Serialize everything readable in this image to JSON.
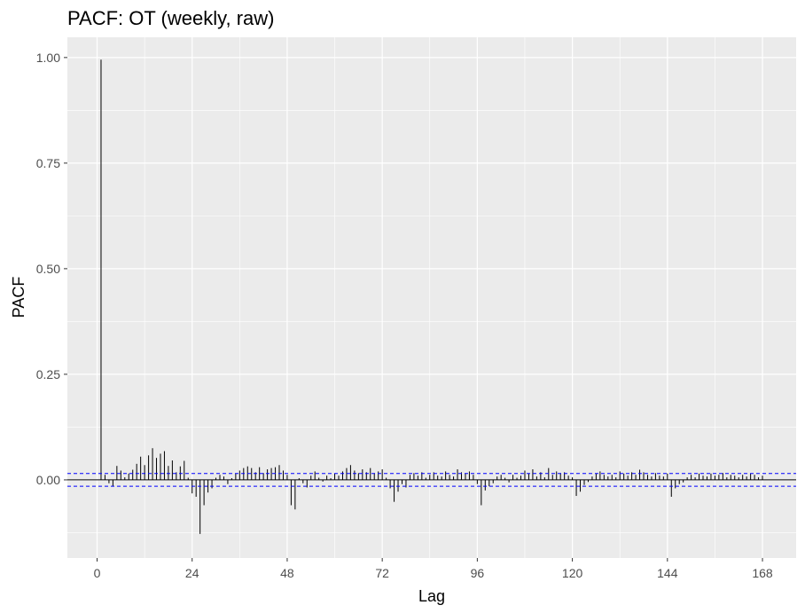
{
  "chart_data": {
    "type": "bar",
    "title": "PACF: OT (weekly, raw)",
    "xlabel": "Lag",
    "ylabel": "PACF",
    "xlim": [
      -7.5,
      176.5
    ],
    "ylim": [
      -0.185,
      1.048
    ],
    "x_ticks": [
      0,
      24,
      48,
      72,
      96,
      120,
      144,
      168
    ],
    "x_tick_labels": [
      "0",
      "24",
      "48",
      "72",
      "96",
      "120",
      "144",
      "168"
    ],
    "y_ticks": [
      0.0,
      0.25,
      0.5,
      0.75,
      1.0
    ],
    "y_tick_labels": [
      "0.00",
      "0.25",
      "0.50",
      "0.75",
      "1.00"
    ],
    "confidence_bounds": [
      0.0151,
      -0.0151
    ],
    "grid": true,
    "lags": [
      1,
      2,
      3,
      4,
      5,
      6,
      7,
      8,
      9,
      10,
      11,
      12,
      13,
      14,
      15,
      16,
      17,
      18,
      19,
      20,
      21,
      22,
      23,
      24,
      25,
      26,
      27,
      28,
      29,
      30,
      31,
      32,
      33,
      34,
      35,
      36,
      37,
      38,
      39,
      40,
      41,
      42,
      43,
      44,
      45,
      46,
      47,
      48,
      49,
      50,
      51,
      52,
      53,
      54,
      55,
      56,
      57,
      58,
      59,
      60,
      61,
      62,
      63,
      64,
      65,
      66,
      67,
      68,
      69,
      70,
      71,
      72,
      73,
      74,
      75,
      76,
      77,
      78,
      79,
      80,
      81,
      82,
      83,
      84,
      85,
      86,
      87,
      88,
      89,
      90,
      91,
      92,
      93,
      94,
      95,
      96,
      97,
      98,
      99,
      100,
      101,
      102,
      103,
      104,
      105,
      106,
      107,
      108,
      109,
      110,
      111,
      112,
      113,
      114,
      115,
      116,
      117,
      118,
      119,
      120,
      121,
      122,
      123,
      124,
      125,
      126,
      127,
      128,
      129,
      130,
      131,
      132,
      133,
      134,
      135,
      136,
      137,
      138,
      139,
      140,
      141,
      142,
      143,
      144,
      145,
      146,
      147,
      148,
      149,
      150,
      151,
      152,
      153,
      154,
      155,
      156,
      157,
      158,
      159,
      160,
      161,
      162,
      163,
      164,
      165,
      166,
      167,
      168
    ],
    "values": [
      0.995,
      0.012,
      -0.008,
      -0.015,
      0.033,
      0.022,
      0.006,
      0.015,
      0.024,
      0.038,
      0.055,
      0.035,
      0.058,
      0.075,
      0.052,
      0.062,
      0.068,
      0.033,
      0.046,
      0.018,
      0.032,
      0.045,
      0.005,
      -0.032,
      -0.04,
      -0.128,
      -0.06,
      -0.03,
      -0.02,
      0.005,
      0.012,
      0.008,
      -0.01,
      0.004,
      0.015,
      0.022,
      0.028,
      0.032,
      0.028,
      0.018,
      0.03,
      0.016,
      0.025,
      0.028,
      0.03,
      0.035,
      0.022,
      0.012,
      -0.06,
      -0.07,
      0.004,
      -0.008,
      -0.018,
      0.01,
      0.02,
      0.005,
      -0.004,
      0.01,
      0.004,
      0.015,
      0.01,
      0.02,
      0.028,
      0.035,
      0.022,
      0.016,
      0.025,
      0.018,
      0.028,
      0.016,
      0.02,
      0.025,
      0.005,
      -0.02,
      -0.052,
      -0.028,
      -0.01,
      -0.018,
      0.012,
      0.016,
      0.01,
      0.018,
      0.005,
      0.012,
      0.018,
      0.01,
      0.008,
      0.02,
      0.012,
      0.008,
      0.025,
      0.018,
      0.015,
      0.02,
      0.012,
      -0.01,
      -0.06,
      -0.025,
      -0.015,
      -0.008,
      0.008,
      0.012,
      0.005,
      -0.006,
      0.012,
      0.005,
      0.01,
      0.022,
      0.015,
      0.025,
      0.008,
      0.018,
      0.006,
      0.028,
      0.012,
      0.02,
      0.016,
      0.018,
      0.01,
      0.006,
      -0.038,
      -0.028,
      -0.012,
      -0.005,
      0.008,
      0.015,
      0.02,
      0.012,
      0.008,
      0.012,
      0.006,
      0.02,
      0.015,
      0.01,
      0.018,
      0.012,
      0.024,
      0.018,
      0.012,
      0.008,
      0.016,
      0.01,
      0.008,
      0.015,
      -0.04,
      -0.02,
      -0.01,
      -0.006,
      0.006,
      0.012,
      0.006,
      0.015,
      0.01,
      0.008,
      0.015,
      0.01,
      0.012,
      0.016,
      0.006,
      0.012,
      0.01,
      0.006,
      0.012,
      0.008,
      0.015,
      0.012,
      0.006,
      0.01
    ]
  }
}
